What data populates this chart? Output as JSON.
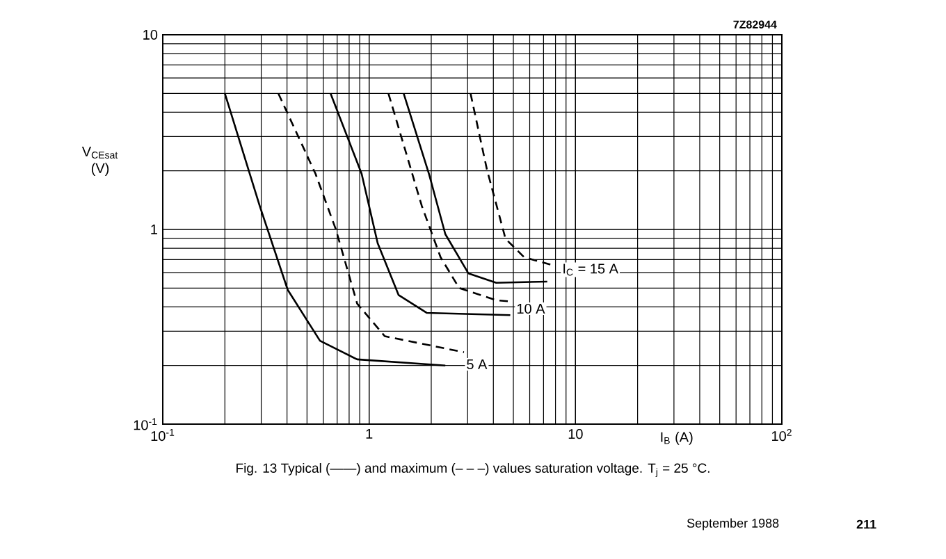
{
  "chart_data": {
    "type": "line",
    "xlabel": "I$_{B}$ (A)",
    "ylabel": "V$_{CEsat}$ (V)",
    "log": "xy",
    "grid": true,
    "marker": "none",
    "xlim": [
      0.1,
      100
    ],
    "ylim": [
      0.1,
      10
    ],
    "xticks": [
      {
        "value": 0.1,
        "label": "10$^{-1}$"
      },
      1,
      10,
      {
        "value": 100,
        "label": "10$^{2}$"
      }
    ],
    "yticks": [
      {
        "value": 0.1,
        "label": "10$^{-1}$"
      },
      1,
      10
    ],
    "series": [
      {
        "color": "#000000",
        "line_style": "solid",
        "x": [
          0.2,
          0.295,
          0.403,
          0.578,
          0.875,
          2.34
        ],
        "values": [
          5,
          1.32,
          0.49,
          0.268,
          0.215,
          0.2
        ]
      },
      {
        "color": "#000000",
        "line_style": "dashed",
        "x": [
          0.363,
          0.55,
          0.69,
          0.875,
          1.19,
          2.88
        ],
        "values": [
          5,
          1.93,
          1.0,
          0.416,
          0.283,
          0.234
        ]
      },
      {
        "color": "#000000",
        "line_style": "solid",
        "x": [
          0.65,
          0.92,
          1.1,
          1.39,
          1.9,
          4.83
        ],
        "values": [
          5,
          1.93,
          0.85,
          0.46,
          0.373,
          0.363
        ]
      },
      {
        "color": "#000000",
        "line_style": "dashed",
        "x": [
          1.24,
          1.8,
          2.22,
          2.73,
          4.13,
          4.83
        ],
        "values": [
          5,
          1.32,
          0.72,
          0.5,
          0.433,
          0.427
        ]
      },
      {
        "color": "#000000",
        "line_style": "solid",
        "x": [
          1.47,
          1.95,
          2.34,
          3.03,
          4.13,
          7.3
        ],
        "values": [
          5,
          1.93,
          0.946,
          0.594,
          0.532,
          0.54
        ]
      },
      {
        "color": "#000000",
        "line_style": "dashed",
        "x": [
          3.1,
          3.72,
          4.58,
          5.64,
          7.7
        ],
        "values": [
          5,
          2.04,
          0.896,
          0.72,
          0.656
        ]
      }
    ],
    "annotations": [
      "I$_{C}$ = 15 A",
      "10 A",
      "5 A",
      "7Z82944",
      "Fig. 13 Typical (——) and maximum (– – –) values saturation voltage. T$_{j}$ = 25 °C.",
      "September 1988",
      "211"
    ]
  }
}
